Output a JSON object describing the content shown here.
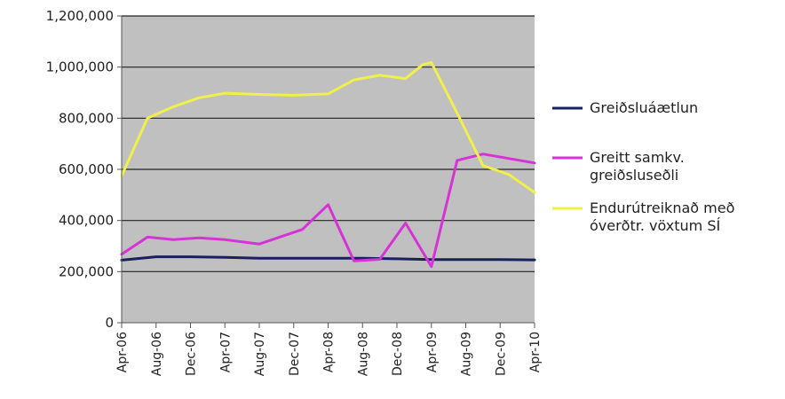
{
  "chart_data": {
    "type": "line",
    "title": "",
    "xlabel": "",
    "ylabel": "",
    "ylim": [
      0,
      1200000
    ],
    "y_ticks": [
      "0",
      "200,000",
      "400,000",
      "600,000",
      "800,000",
      "1,000,000",
      "1,200,000"
    ],
    "y_tick_values": [
      0,
      200000,
      400000,
      600000,
      800000,
      1000000,
      1200000
    ],
    "x_ticks": [
      "Apr-06",
      "Aug-06",
      "Dec-06",
      "Apr-07",
      "Aug-07",
      "Dec-07",
      "Apr-08",
      "Aug-08",
      "Dec-08",
      "Apr-09",
      "Aug-09",
      "Dec-09",
      "Apr-10"
    ],
    "x_tick_months": [
      0,
      4,
      8,
      12,
      16,
      20,
      24,
      28,
      32,
      36,
      40,
      44,
      48
    ],
    "x_range_months": [
      0,
      48
    ],
    "grid": "horizontal",
    "legend_position": "right",
    "plot_background": "#c0c0c0",
    "series": [
      {
        "name": "Greiðsluáætlun",
        "color": "#1a1f5e",
        "points": [
          [
            0,
            245000
          ],
          [
            4,
            258000
          ],
          [
            8,
            258000
          ],
          [
            12,
            256000
          ],
          [
            16,
            252000
          ],
          [
            20,
            252000
          ],
          [
            24,
            252000
          ],
          [
            28,
            252000
          ],
          [
            32,
            250000
          ],
          [
            36,
            247000
          ],
          [
            40,
            247000
          ],
          [
            44,
            247000
          ],
          [
            48,
            246000
          ]
        ]
      },
      {
        "name": "Greitt samkv. greiðsluseðli",
        "color": "#d633d6",
        "points": [
          [
            0,
            268000
          ],
          [
            3,
            335000
          ],
          [
            6,
            325000
          ],
          [
            9,
            332000
          ],
          [
            12,
            325000
          ],
          [
            16,
            308000
          ],
          [
            21,
            365000
          ],
          [
            24,
            462000
          ],
          [
            27,
            242000
          ],
          [
            30,
            248000
          ],
          [
            33,
            390000
          ],
          [
            36,
            220000
          ],
          [
            39,
            635000
          ],
          [
            42,
            660000
          ],
          [
            48,
            625000
          ]
        ]
      },
      {
        "name": "Endurútreiknað með óverðtr. vöxtum SÍ",
        "color": "#f0f04a",
        "points": [
          [
            0,
            575000
          ],
          [
            3,
            800000
          ],
          [
            6,
            845000
          ],
          [
            9,
            880000
          ],
          [
            12,
            898000
          ],
          [
            16,
            893000
          ],
          [
            20,
            890000
          ],
          [
            24,
            895000
          ],
          [
            27,
            950000
          ],
          [
            30,
            968000
          ],
          [
            33,
            955000
          ],
          [
            35,
            1010000
          ],
          [
            36,
            1018000
          ],
          [
            39,
            820000
          ],
          [
            42,
            615000
          ],
          [
            45,
            580000
          ],
          [
            48,
            510000
          ]
        ]
      }
    ],
    "legend": [
      {
        "lines": [
          "Greiðsluáætlun"
        ]
      },
      {
        "lines": [
          "Greitt samkv.",
          "greiðsluseðli"
        ]
      },
      {
        "lines": [
          "Endurútreiknað með",
          "óverðtr. vöxtum SÍ"
        ]
      }
    ]
  }
}
